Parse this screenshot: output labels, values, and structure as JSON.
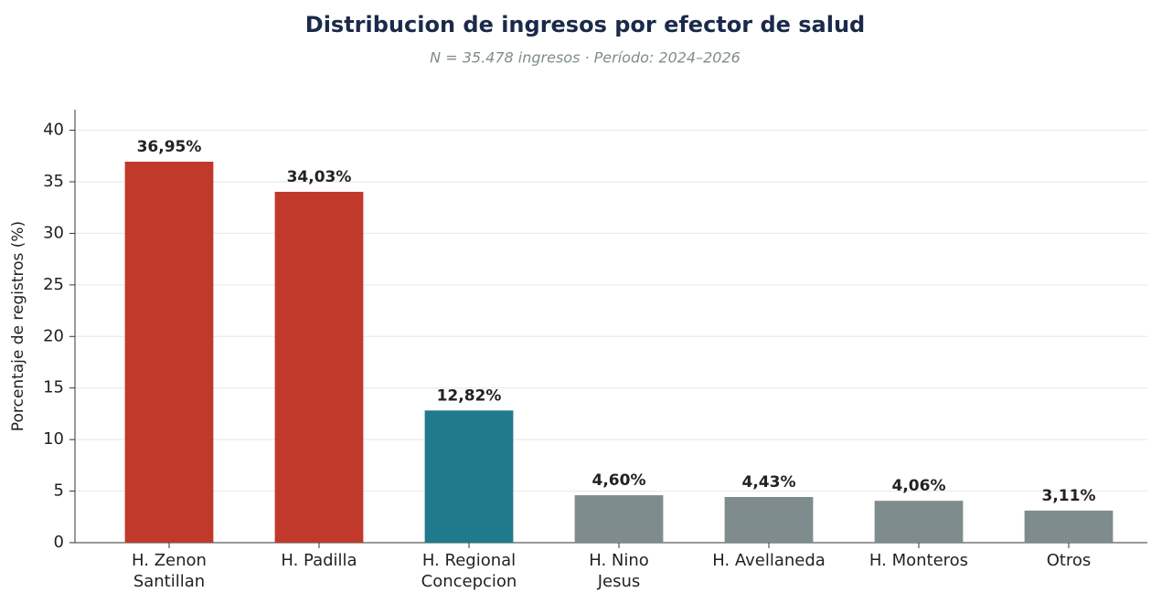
{
  "chart_data": {
    "type": "bar",
    "title": "Distribucion de ingresos por efector de salud",
    "subtitle": "N = 35.478 ingresos  ·  Período: 2024–2026",
    "y_label": "Porcentaje de registros (%)",
    "categories": [
      "H. Zenon\nSantillan",
      "H. Padilla",
      "H. Regional\nConcepcion",
      "H. Nino\nJesus",
      "H. Avellaneda",
      "H. Monteros",
      "Otros"
    ],
    "values": [
      36.95,
      34.03,
      12.82,
      4.6,
      4.43,
      4.06,
      3.11
    ],
    "value_labels": [
      "36,95%",
      "34,03%",
      "12,82%",
      "4,60%",
      "4,43%",
      "4,06%",
      "3,11%"
    ],
    "colors": [
      "#c0392b",
      "#c0392b",
      "#1f7a8c",
      "#7f8c8d",
      "#7f8c8d",
      "#7f8c8d",
      "#7f8c8d"
    ],
    "ylim": [
      0,
      42
    ],
    "yticks": [
      0,
      5,
      10,
      15,
      20,
      25,
      30,
      35,
      40
    ],
    "grid": true
  }
}
